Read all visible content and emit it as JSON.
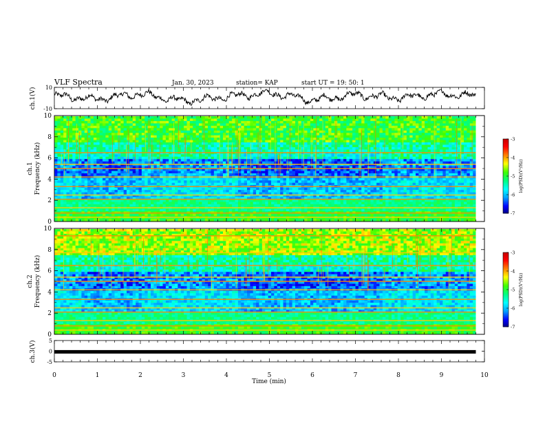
{
  "header": {
    "title": "VLF Spectra",
    "date": "Jan. 30, 2023",
    "station": "station= KAP",
    "start": "start  UT =   19: 50: 1"
  },
  "colors": {
    "colormap": [
      "#000070",
      "#0000ff",
      "#00a0ff",
      "#00ffff",
      "#00ff80",
      "#40ff00",
      "#ffff00",
      "#ff8000",
      "#ff0000",
      "#c00000",
      "#ffffff"
    ],
    "trace": "#000000"
  },
  "chart_data": [
    {
      "type": "line",
      "name": "ch1-trace",
      "ylabel": "ch.1(V)",
      "ylim": [
        -10,
        10
      ],
      "yticks": [
        "10",
        "-10"
      ],
      "xlim": [
        0,
        10
      ],
      "description_values": "noisy waveform oscillating roughly between -6 and 7 V",
      "x": [
        0,
        1,
        2,
        3,
        4,
        5,
        6,
        7,
        8,
        9,
        9.8
      ],
      "y": [
        2,
        -1,
        4,
        -3,
        1,
        5,
        -2,
        3,
        0,
        4,
        2
      ]
    },
    {
      "type": "heatmap",
      "name": "ch1-spectrogram",
      "ylabel": "ch.1\nFrequency (kHz)",
      "ylim": [
        0,
        10
      ],
      "yticks": [
        "0",
        "2",
        "4",
        "6",
        "8",
        "10"
      ],
      "xlim": [
        0,
        10
      ],
      "data_extent_x": [
        0,
        9.8
      ],
      "colorbar": {
        "label": "log(PSD)(V²/Hz)",
        "range": [
          -7,
          -3
        ],
        "ticks": [
          "-3",
          "-4",
          "-5",
          "-6",
          "-7"
        ]
      },
      "bright_band_freqs_khz": [
        0.4,
        0.8,
        1.3,
        2.1,
        2.5,
        3.3,
        4.2,
        5.0,
        5.4,
        6.5
      ],
      "quiet_intervals_min": [
        [
          0.6,
          2.0
        ],
        [
          4.3,
          7.6
        ]
      ]
    },
    {
      "type": "heatmap",
      "name": "ch2-spectrogram",
      "ylabel": "ch.2\nFrequency (kHz)",
      "ylim": [
        0,
        10
      ],
      "yticks": [
        "0",
        "2",
        "4",
        "6",
        "8",
        "10"
      ],
      "xlim": [
        0,
        10
      ],
      "data_extent_x": [
        0,
        9.8
      ],
      "colorbar": {
        "label": "log(PSD)(V²/Hz)",
        "range": [
          -7,
          -3
        ],
        "ticks": [
          "-3",
          "-4",
          "-5",
          "-6",
          "-7"
        ]
      },
      "bright_band_freqs_khz": [
        0.4,
        0.8,
        1.3,
        2.1,
        2.5,
        3.3,
        4.2,
        5.0,
        5.4,
        6.5,
        7.7,
        9.3
      ],
      "quiet_intervals_min": [
        [
          0.6,
          2.0
        ],
        [
          4.3,
          7.6
        ]
      ]
    },
    {
      "type": "line",
      "name": "ch3-trace",
      "ylabel": "ch.3(V)",
      "ylim": [
        -5,
        5
      ],
      "yticks": [
        "5",
        "0",
        "-5"
      ],
      "xlim": [
        0,
        10
      ],
      "level": 0,
      "band_halfwidth": 0.5,
      "xlabel": "Time  (min)",
      "xticks": [
        "0",
        "1",
        "2",
        "3",
        "4",
        "5",
        "6",
        "7",
        "8",
        "9",
        "10"
      ]
    }
  ]
}
